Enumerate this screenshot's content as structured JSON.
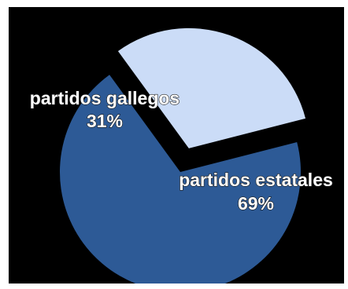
{
  "chart_data": {
    "type": "pie",
    "slices": [
      {
        "label": "partidos estatales",
        "value": 69,
        "value_label": "69%",
        "color": "#2d5a96",
        "exploded": false
      },
      {
        "label": "partidos gallegos",
        "value": 31,
        "value_label": "31%",
        "color": "#cbdcf7",
        "exploded": true
      }
    ],
    "background": "#000000",
    "legend": "none"
  }
}
